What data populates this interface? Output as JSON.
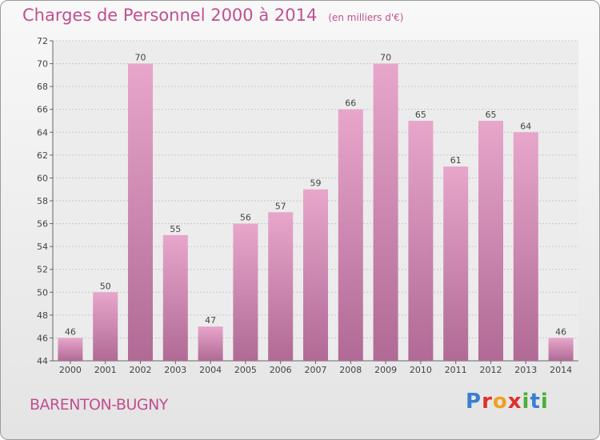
{
  "header": {
    "title": "Charges de Personnel 2000 à 2014",
    "subtitle": "(en milliers d'€)"
  },
  "footer": {
    "town": "BARENTON-BUGNY",
    "logo_letters": [
      {
        "ch": "P",
        "color": "#3a7fd0"
      },
      {
        "ch": "r",
        "color": "#e0302a"
      },
      {
        "ch": "o",
        "color": "#f0a020"
      },
      {
        "ch": "x",
        "color": "#e0302a"
      },
      {
        "ch": "i",
        "color": "#4caf35"
      },
      {
        "ch": "t",
        "color": "#3a7fd0"
      },
      {
        "ch": "i",
        "color": "#4caf35"
      }
    ]
  },
  "chart_data": {
    "type": "bar",
    "title": "Charges de Personnel 2000 à 2014",
    "subtitle": "(en milliers d'€)",
    "categories": [
      "2000",
      "2001",
      "2002",
      "2003",
      "2004",
      "2005",
      "2006",
      "2007",
      "2008",
      "2009",
      "2010",
      "2011",
      "2012",
      "2013",
      "2014"
    ],
    "values": [
      46,
      50,
      70,
      55,
      47,
      56,
      57,
      59,
      66,
      70,
      65,
      61,
      65,
      64,
      46
    ],
    "ylim": [
      44,
      72
    ],
    "yticks": [
      44,
      46,
      48,
      50,
      52,
      54,
      56,
      58,
      60,
      62,
      64,
      66,
      68,
      70,
      72
    ],
    "grid": true,
    "bar_color": "#d98db8",
    "value_labels": true
  }
}
